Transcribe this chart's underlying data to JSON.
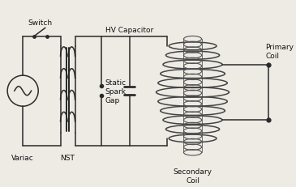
{
  "background_color": "#eeebe5",
  "line_color": "#2a2a2a",
  "line_width": 1.1,
  "text_color": "#111111",
  "labels": {
    "variac": "Variac",
    "nst": "NST",
    "switch": "Switch",
    "hv_cap": "HV Capacitor",
    "spark_gap": "Static\nSpark\nGap",
    "primary_coil": "Primary\nCoil",
    "secondary_coil": "Secondary\nCoil"
  },
  "font_size": 6.5,
  "xlim": [
    0,
    10
  ],
  "ylim": [
    0,
    6.5
  ]
}
